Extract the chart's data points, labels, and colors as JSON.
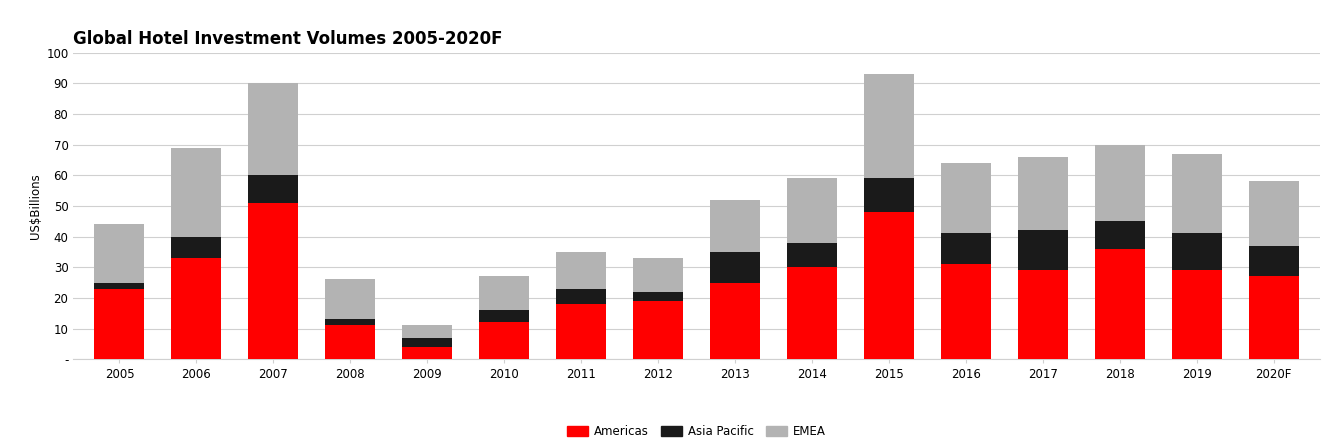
{
  "title": "Global Hotel Investment Volumes 2005-2020F",
  "ylabel": "US$Billions",
  "years": [
    "2005",
    "2006",
    "2007",
    "2008",
    "2009",
    "2010",
    "2011",
    "2012",
    "2013",
    "2014",
    "2015",
    "2016",
    "2017",
    "2018",
    "2019",
    "2020F"
  ],
  "americas": [
    23,
    33,
    51,
    11,
    4,
    12,
    18,
    19,
    25,
    30,
    48,
    31,
    29,
    36,
    29,
    27
  ],
  "asia_pacific": [
    2,
    7,
    9,
    2,
    3,
    4,
    5,
    3,
    10,
    8,
    11,
    10,
    13,
    9,
    12,
    10
  ],
  "emea": [
    19,
    29,
    30,
    13,
    4,
    11,
    12,
    11,
    17,
    21,
    34,
    23,
    24,
    25,
    26,
    21
  ],
  "color_americas": "#FF0000",
  "color_asia_pacific": "#1a1a1a",
  "color_emea": "#b3b3b3",
  "ylim": [
    0,
    100
  ],
  "yticks": [
    0,
    10,
    20,
    30,
    40,
    50,
    60,
    70,
    80,
    90,
    100
  ],
  "ytick_labels": [
    "-",
    "10",
    "20",
    "30",
    "40",
    "50",
    "60",
    "70",
    "80",
    "90",
    "100"
  ],
  "background_color": "#ffffff",
  "grid_color": "#d0d0d0",
  "title_fontsize": 12,
  "axis_fontsize": 8.5,
  "legend_fontsize": 8.5
}
